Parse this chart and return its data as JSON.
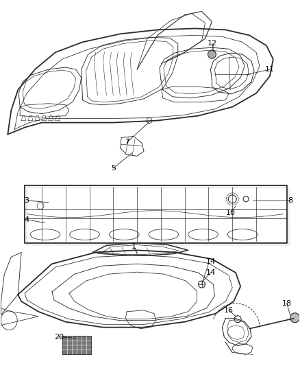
{
  "background_color": "#ffffff",
  "fig_width": 4.38,
  "fig_height": 5.33,
  "dpi": 100,
  "line_color": "#2a2a2a",
  "light_color": "#888888",
  "label_fontsize": 8,
  "line_width": 0.8
}
